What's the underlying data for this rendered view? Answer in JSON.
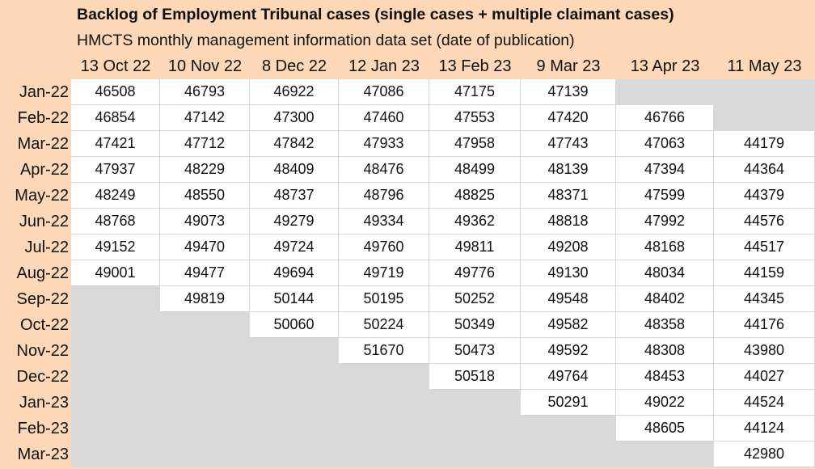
{
  "title": "Backlog of Employment Tribunal cases (single cases + multiple claimant cases)",
  "subtitle": "HMCTS monthly management information data set (date of publication)",
  "columns": [
    "13 Oct 22",
    "10 Nov 22",
    "8 Dec 22",
    "12 Jan 23",
    "13 Feb 23",
    "9 Mar 23",
    "13 Apr 23",
    "11 May 23"
  ],
  "rows": [
    {
      "label": "Jan-22",
      "cells": [
        "46508",
        "46793",
        "46922",
        "47086",
        "47175",
        "47139",
        null,
        null
      ]
    },
    {
      "label": "Feb-22",
      "cells": [
        "46854",
        "47142",
        "47300",
        "47460",
        "47553",
        "47420",
        "46766",
        null
      ]
    },
    {
      "label": "Mar-22",
      "cells": [
        "47421",
        "47712",
        "47842",
        "47933",
        "47958",
        "47743",
        "47063",
        "44179"
      ]
    },
    {
      "label": "Apr-22",
      "cells": [
        "47937",
        "48229",
        "48409",
        "48476",
        "48499",
        "48139",
        "47394",
        "44364"
      ]
    },
    {
      "label": "May-22",
      "cells": [
        "48249",
        "48550",
        "48737",
        "48796",
        "48825",
        "48371",
        "47599",
        "44379"
      ]
    },
    {
      "label": "Jun-22",
      "cells": [
        "48768",
        "49073",
        "49279",
        "49334",
        "49362",
        "48818",
        "47992",
        "44576"
      ]
    },
    {
      "label": "Jul-22",
      "cells": [
        "49152",
        "49470",
        "49724",
        "49760",
        "49811",
        "49208",
        "48168",
        "44517"
      ]
    },
    {
      "label": "Aug-22",
      "cells": [
        "49001",
        "49477",
        "49694",
        "49719",
        "49776",
        "49130",
        "48034",
        "44159"
      ]
    },
    {
      "label": "Sep-22",
      "cells": [
        null,
        "49819",
        "50144",
        "50195",
        "50252",
        "49548",
        "48402",
        "44345"
      ]
    },
    {
      "label": "Oct-22",
      "cells": [
        null,
        null,
        "50060",
        "50224",
        "50349",
        "49582",
        "48358",
        "44176"
      ]
    },
    {
      "label": "Nov-22",
      "cells": [
        null,
        null,
        null,
        "51670",
        "50473",
        "49592",
        "48308",
        "43980"
      ]
    },
    {
      "label": "Dec-22",
      "cells": [
        null,
        null,
        null,
        null,
        "50518",
        "49764",
        "48453",
        "44027"
      ]
    },
    {
      "label": "Jan-23",
      "cells": [
        null,
        null,
        null,
        null,
        null,
        "50291",
        "49022",
        "44524"
      ]
    },
    {
      "label": "Feb-23",
      "cells": [
        null,
        null,
        null,
        null,
        null,
        null,
        "48605",
        "44124"
      ]
    },
    {
      "label": "Mar-23",
      "cells": [
        null,
        null,
        null,
        null,
        null,
        null,
        null,
        "42980"
      ]
    }
  ],
  "colors": {
    "header_background": "#fcd8b8",
    "value_cell": "#ffffff",
    "empty_cell": "#d9d9d9"
  }
}
